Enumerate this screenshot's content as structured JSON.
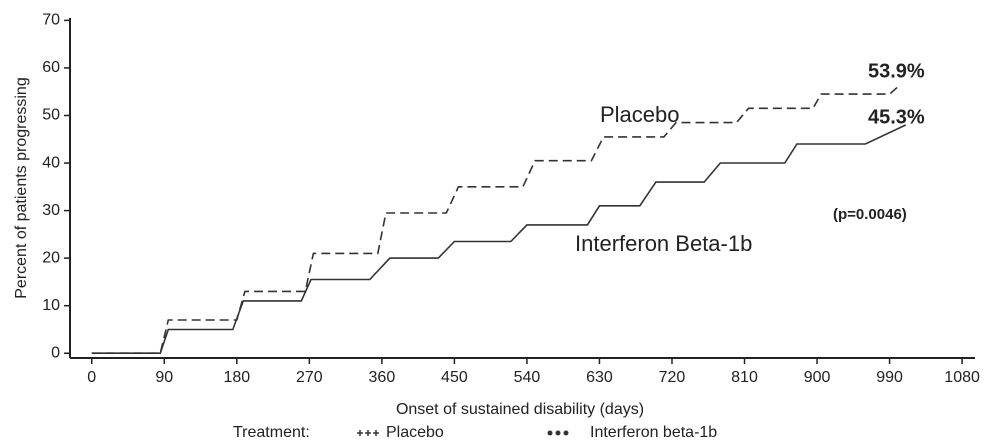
{
  "chart_data": {
    "type": "line",
    "xlabel": "Onset of sustained disability (days)",
    "ylabel": "Percent of patients progressing",
    "legend_title": "Treatment:",
    "xlim": [
      -27,
      1096
    ],
    "xticks": [
      0,
      90,
      180,
      270,
      360,
      450,
      540,
      630,
      720,
      810,
      900,
      990,
      1080
    ],
    "ylim": [
      -1,
      70.5
    ],
    "yticks": [
      0,
      10,
      20,
      30,
      40,
      50,
      60,
      70
    ],
    "series": [
      {
        "name": "Placebo",
        "color": "#333333",
        "dash": "9 5",
        "marker": "plus",
        "x": [
          0,
          85,
          95,
          180,
          190,
          265,
          275,
          355,
          365,
          440,
          455,
          535,
          550,
          620,
          635,
          710,
          725,
          800,
          815,
          895,
          905,
          990,
          1000
        ],
        "values": [
          0,
          0,
          7,
          7,
          13,
          13,
          21,
          21,
          29.5,
          29.5,
          35,
          35,
          40.5,
          40.5,
          45.5,
          45.5,
          48.5,
          48.5,
          51.5,
          51.5,
          54.5,
          54.5,
          56
        ]
      },
      {
        "name": "Interferon beta-1b",
        "color": "#333333",
        "dash": "none",
        "marker": "dot",
        "x": [
          0,
          85,
          95,
          175,
          188,
          260,
          272,
          345,
          370,
          430,
          450,
          520,
          540,
          615,
          630,
          680,
          700,
          760,
          780,
          860,
          875,
          960,
          1010
        ],
        "values": [
          0,
          0,
          5,
          5,
          11,
          11,
          15.5,
          15.5,
          20,
          20,
          23.5,
          23.5,
          27,
          27,
          31,
          31,
          36,
          36,
          40,
          40,
          44,
          44,
          48
        ]
      }
    ],
    "annotations": [
      "53.9%",
      "45.3%",
      "Placebo",
      "Interferon Beta-1b",
      "(p=0.0046)"
    ]
  }
}
